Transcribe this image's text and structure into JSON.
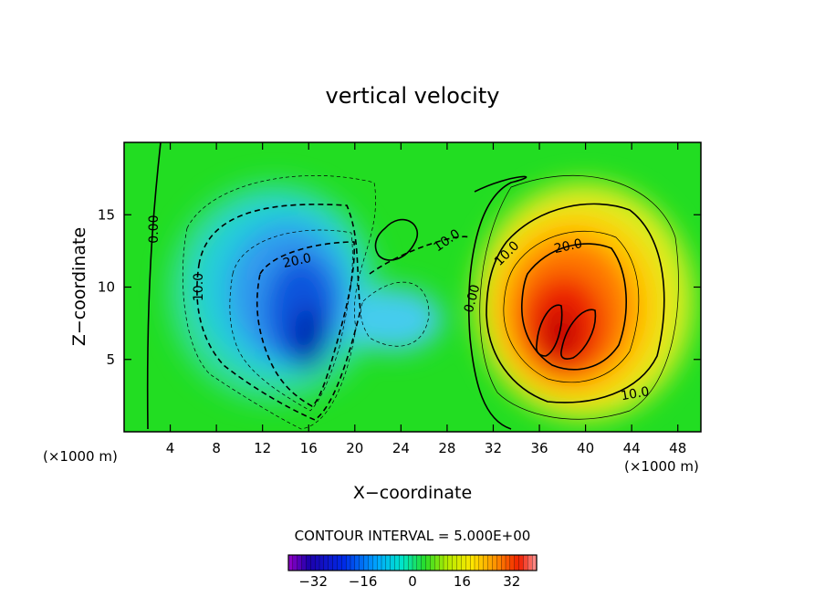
{
  "chart_data": {
    "type": "heatmap",
    "title": "vertical velocity",
    "xlabel": "X−coordinate",
    "ylabel": "Z−coordinate",
    "x_unit_left": "(×1000 m)",
    "x_unit_right": "(×1000 m)",
    "xlim": [
      0,
      50
    ],
    "ylim": [
      0,
      20
    ],
    "x_ticks": [
      4,
      8,
      12,
      16,
      20,
      24,
      28,
      32,
      36,
      40,
      44,
      48
    ],
    "y_ticks": [
      5,
      10,
      15
    ],
    "contour_interval_label": "CONTOUR INTERVAL = 5.000E+00",
    "colorbar": {
      "range": [
        -40,
        40
      ],
      "ticks": [
        -32,
        -16,
        0,
        16,
        32
      ],
      "tick_labels": [
        "−32",
        "−16",
        "0",
        "16",
        "32"
      ]
    },
    "contour_labels": [
      {
        "text": "0.00",
        "x": 2.6,
        "z": 14.0
      },
      {
        "text": "10.0",
        "x": 6.5,
        "z": 10.0
      },
      {
        "text": "20.0",
        "x": 15.0,
        "z": 11.8
      },
      {
        "text": "10.0",
        "x": 28.0,
        "z": 13.2
      },
      {
        "text": "0.00",
        "x": 30.2,
        "z": 9.2
      },
      {
        "text": "10.0",
        "x": 33.2,
        "z": 12.3
      },
      {
        "text": "20.0",
        "x": 38.5,
        "z": 12.8
      },
      {
        "text": "10.0",
        "x": 44.3,
        "z": 2.6
      }
    ],
    "extrema": [
      {
        "x": 16.5,
        "z": 7.0,
        "value": -36
      },
      {
        "x": 38.0,
        "z": 8.0,
        "value": 36
      }
    ]
  }
}
